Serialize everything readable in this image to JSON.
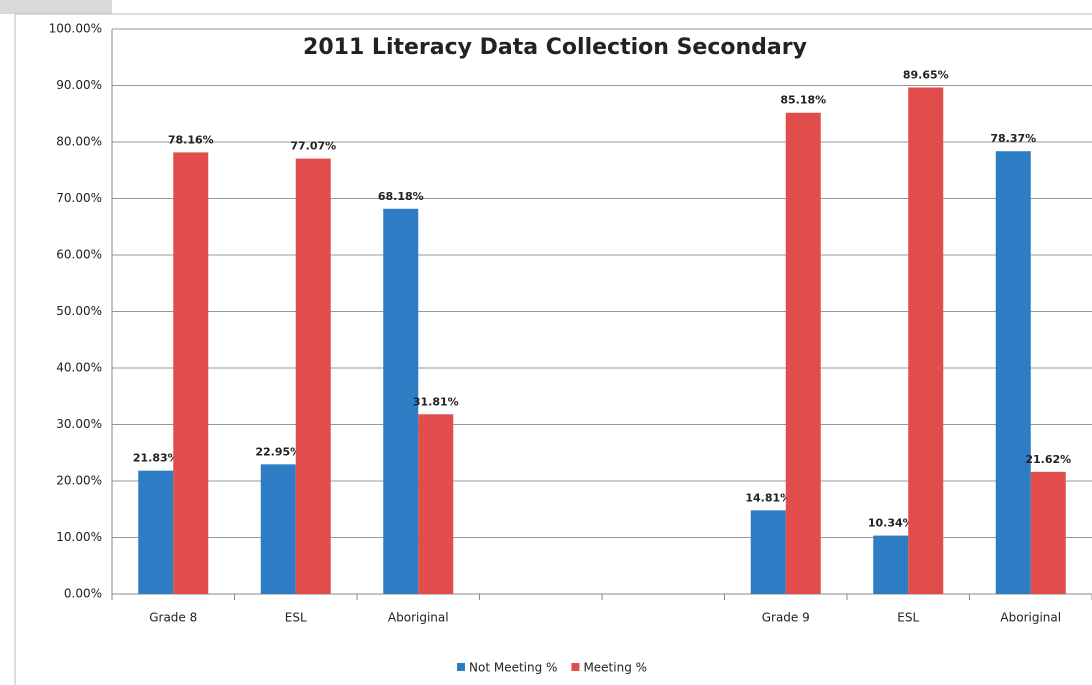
{
  "chart_data": {
    "type": "bar",
    "title": "2011 Literacy Data Collection Secondary",
    "categories": [
      "Grade 8",
      "ESL",
      "Aboriginal",
      null,
      null,
      "Grade 9",
      "ESL",
      "Aboriginal"
    ],
    "series": [
      {
        "name": "Not Meeting %",
        "color": "#2e7dc4",
        "values": [
          21.83,
          22.95,
          68.18,
          null,
          null,
          14.81,
          10.34,
          78.37
        ],
        "value_labels": [
          "21.83%",
          "22.95%",
          "68.18%",
          null,
          null,
          "14.81%",
          "10.34%",
          "78.37%"
        ]
      },
      {
        "name": "Meeting %",
        "color": "#e04d4a",
        "values": [
          78.16,
          77.07,
          31.81,
          null,
          null,
          85.18,
          89.65,
          21.62
        ],
        "value_labels": [
          "78.16%",
          "77.07%",
          "31.81%",
          null,
          null,
          "85.18%",
          "89.65%",
          "21.62%"
        ]
      }
    ],
    "ylim": [
      0,
      100
    ],
    "yticks": [
      {
        "value": 0,
        "label": "0.00%"
      },
      {
        "value": 10,
        "label": "10.00%"
      },
      {
        "value": 20,
        "label": "20.00%"
      },
      {
        "value": 30,
        "label": "30.00%"
      },
      {
        "value": 40,
        "label": "40.00%"
      },
      {
        "value": 50,
        "label": "50.00%"
      },
      {
        "value": 60,
        "label": "60.00%"
      },
      {
        "value": 70,
        "label": "70.00%"
      },
      {
        "value": 80,
        "label": "80.00%"
      },
      {
        "value": 90,
        "label": "90.00%"
      },
      {
        "value": 100,
        "label": "100.00%"
      }
    ],
    "grid": true,
    "legend": "bottom"
  }
}
